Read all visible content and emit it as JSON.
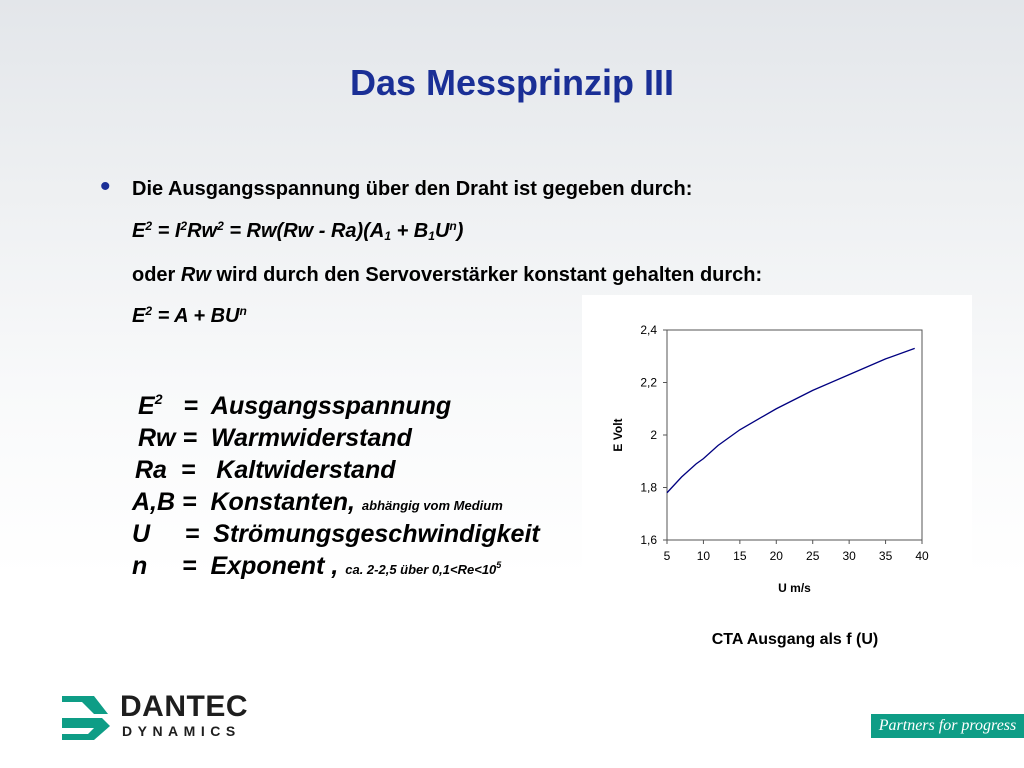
{
  "slide": {
    "title": "Das Messprinzip III"
  },
  "bullet": {
    "line1": "Die Ausgangsspannung über den Draht ist gegeben durch:",
    "formula1": {
      "a": "E",
      "a_sup": "2",
      "b": " = I",
      "b_sup": "2",
      "c": "Rw",
      "c_sup": "2",
      "d": " = Rw(Rw - Ra)(A",
      "d_sub": "1",
      "e": " + B",
      "e_sub": "1",
      "f": "U",
      "f_sup": "n",
      "g": ")"
    },
    "line3_pre": "oder ",
    "line3_italic": "Rw",
    "line3_post": " wird durch den Servoverstärker konstant gehalten durch:",
    "formula2": {
      "a": "E",
      "a_sup": "2",
      "b": " = A + BU",
      "b_sup": "n"
    }
  },
  "definitions": [
    {
      "sym": "E",
      "sup": "2",
      "text": "   =  Ausgangsspannung"
    },
    {
      "sym": "Rw",
      "text": " =  Warmwiderstand"
    },
    {
      "sym": "Ra",
      "text": "  =   Kaltwiderstand"
    },
    {
      "sym": "A,B",
      "text": " =  Konstanten, ",
      "small": "abhängig vom Medium"
    },
    {
      "sym": "U",
      "text": "     =  Strömungsgeschwindigkeit"
    },
    {
      "sym": "n",
      "text": "     =  Exponent , ",
      "small": "ca. 2-2,5 über 0,1<Re<10",
      "small_sup": "5"
    }
  ],
  "chart_data": {
    "type": "line",
    "title": "",
    "xlabel": "U m/s",
    "ylabel": "E Volt",
    "xlim": [
      5,
      40
    ],
    "ylim": [
      1.6,
      2.4
    ],
    "x_ticks": [
      "5",
      "10",
      "15",
      "20",
      "25",
      "30",
      "35",
      "40"
    ],
    "x_tick_values": [
      5,
      10,
      15,
      20,
      25,
      30,
      35,
      40
    ],
    "y_ticks": [
      "1,6",
      "1,8",
      "2",
      "2,2",
      "2,4"
    ],
    "y_tick_values": [
      1.6,
      1.8,
      2.0,
      2.2,
      2.4
    ],
    "grid": false,
    "series": [
      {
        "color": "#000080",
        "x": [
          5,
          7,
          9,
          10,
          12,
          15,
          20,
          25,
          30,
          35,
          39
        ],
        "y": [
          1.78,
          1.84,
          1.89,
          1.91,
          1.96,
          2.02,
          2.1,
          2.17,
          2.23,
          2.29,
          2.33
        ]
      }
    ],
    "caption": "CTA Ausgang als f (U)"
  },
  "footer": {
    "logo_line1": "DANTEC",
    "logo_line2": "DYNAMICS",
    "tagline": "Partners for progress",
    "logo_color": "#0e9d86"
  }
}
